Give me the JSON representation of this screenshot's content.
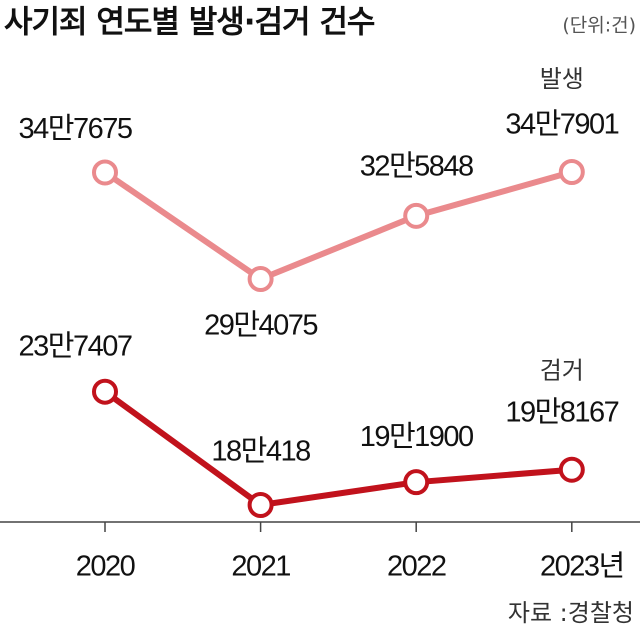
{
  "chart_data": {
    "type": "line",
    "title": "사기죄 연도별 발생·검거 건수",
    "unit": "(단위:건)",
    "source": "자료 :경찰청",
    "categories": [
      "2020",
      "2021",
      "2022",
      "2023년"
    ],
    "series": [
      {
        "name": "발생",
        "color": "#ea8a8d",
        "values": [
          347675,
          294075,
          325848,
          347901
        ],
        "value_labels": [
          "34만7675",
          "29만4075",
          "32만5848",
          "34만7901"
        ]
      },
      {
        "name": "검거",
        "color": "#c1121c",
        "values": [
          237407,
          180418,
          191900,
          198167
        ],
        "value_labels": [
          "23만7407",
          "18만418",
          "19만1900",
          "19만8167"
        ]
      }
    ]
  }
}
